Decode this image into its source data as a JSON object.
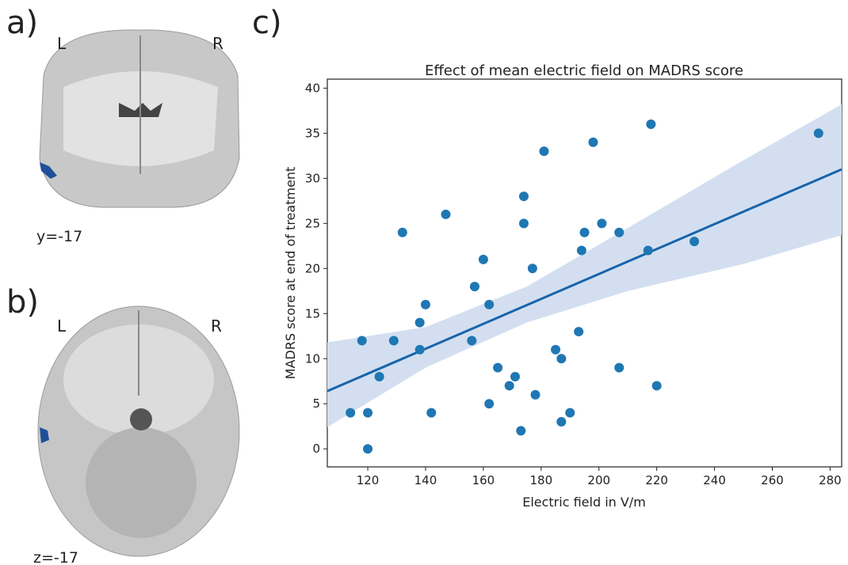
{
  "panels": [
    {
      "label": "a)",
      "left": "L",
      "right": "R",
      "coord": "y=-17"
    },
    {
      "label": "b)",
      "left": "L",
      "right": "R",
      "coord": "z=-17"
    },
    {
      "label": "c)"
    }
  ],
  "chart_data": {
    "type": "scatter",
    "title": "Effect of mean electric field on MADRS score",
    "x_label": "Electric field in V/m",
    "y_label": "MADRS score at end of treatment",
    "xlim": [
      106,
      284
    ],
    "ylim": [
      -2,
      41
    ],
    "xticks": [
      120,
      140,
      160,
      180,
      200,
      220,
      240,
      260,
      280
    ],
    "yticks": [
      0,
      5,
      10,
      15,
      20,
      25,
      30,
      35,
      40
    ],
    "color": "#1f77b4",
    "x": [
      114,
      118,
      120,
      120,
      124,
      129,
      132,
      138,
      138,
      140,
      142,
      147,
      156,
      157,
      160,
      162,
      162,
      165,
      169,
      171,
      173,
      174,
      174,
      177,
      178,
      181,
      185,
      187,
      187,
      190,
      193,
      194,
      195,
      198,
      201,
      207,
      207,
      217,
      218,
      220,
      233,
      276
    ],
    "y": [
      4,
      12,
      4,
      0,
      8,
      12,
      24,
      14,
      11,
      16,
      4,
      26,
      12,
      18,
      21,
      5,
      16,
      9,
      7,
      8,
      2,
      28,
      25,
      20,
      6,
      33,
      11,
      3,
      10,
      4,
      13,
      22,
      24,
      34,
      25,
      24,
      9,
      22,
      36,
      7,
      23,
      35
    ],
    "regression": {
      "color": "#1764ab",
      "x": [
        106,
        284
      ],
      "y": [
        6.4,
        31.0
      ]
    },
    "band": {
      "color": "#d3dff0",
      "x": [
        106,
        140,
        175,
        210,
        250,
        284
      ],
      "upper": [
        11.8,
        13.5,
        18,
        24.5,
        32,
        38.2
      ],
      "lower": [
        2.4,
        9,
        14,
        17.5,
        20.5,
        23.7
      ]
    }
  }
}
